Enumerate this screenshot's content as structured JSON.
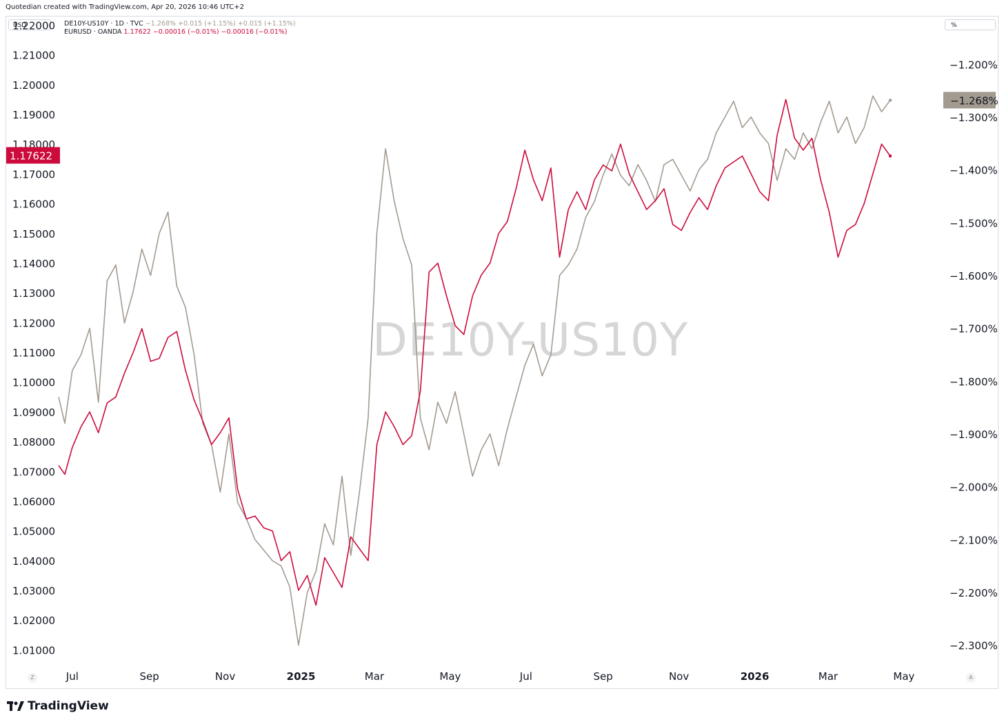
{
  "header": {
    "text": "Quotedian created with TradingView.com, Apr 20, 2026 10:46 UTC+2"
  },
  "toolbar": {
    "left_scale": "USD",
    "right_scale": "%"
  },
  "legend": {
    "series1_name": "DE10Y-US10Y · 1D · TVC",
    "series1_values": "−1.268%  +0.015 (+1.15%)  +0.015 (+1.15%)",
    "series2_name": "EURUSD · OANDA",
    "series2_values": "1.17622  −0.00016 (−0.01%)  −0.00016 (−0.01%)"
  },
  "watermark": "DE10Y-US10Y",
  "footer": {
    "brand": "TradingView"
  },
  "corner_buttons": {
    "left": "Z",
    "right": "A"
  },
  "colors": {
    "spread": "#a39a90",
    "eurusd": "#cc0a3b",
    "spread_label_bg": "#a39a90",
    "eurusd_label_bg": "#cc0a3b"
  },
  "chart_data": {
    "type": "line",
    "x_ticks": [
      {
        "label": "Jul",
        "date": "2024-07-01"
      },
      {
        "label": "Sep",
        "date": "2024-09-01"
      },
      {
        "label": "Nov",
        "date": "2024-11-01"
      },
      {
        "label": "2025",
        "date": "2025-01-01",
        "bold": true
      },
      {
        "label": "Mar",
        "date": "2025-03-01"
      },
      {
        "label": "May",
        "date": "2025-05-01"
      },
      {
        "label": "Jul",
        "date": "2025-07-01"
      },
      {
        "label": "Sep",
        "date": "2025-09-01"
      },
      {
        "label": "Nov",
        "date": "2025-11-01"
      },
      {
        "label": "2026",
        "date": "2026-01-01",
        "bold": true
      },
      {
        "label": "Mar",
        "date": "2026-03-01"
      },
      {
        "label": "May",
        "date": "2026-05-01"
      }
    ],
    "x_range": [
      "2024-06-20",
      "2026-05-31"
    ],
    "left_axis": {
      "range": [
        1.005,
        1.2215
      ],
      "ticks": [
        "1.01000",
        "1.02000",
        "1.03000",
        "1.04000",
        "1.05000",
        "1.06000",
        "1.07000",
        "1.08000",
        "1.09000",
        "1.10000",
        "1.11000",
        "1.12000",
        "1.13000",
        "1.14000",
        "1.15000",
        "1.16000",
        "1.17000",
        "1.18000",
        "1.19000",
        "1.20000",
        "1.21000",
        "1.22000"
      ],
      "last_value_label": "1.17622",
      "last_value": 1.17622
    },
    "right_axis": {
      "range": [
        -2.337,
        -1.1175
      ],
      "ticks": [
        "−1.200%",
        "−1.300%",
        "−1.400%",
        "−1.500%",
        "−1.600%",
        "−1.700%",
        "−1.800%",
        "−1.900%",
        "−2.000%",
        "−2.100%",
        "−2.200%",
        "−2.300%"
      ],
      "tick_values": [
        -1.2,
        -1.3,
        -1.4,
        -1.5,
        -1.6,
        -1.7,
        -1.8,
        -1.9,
        -2.0,
        -2.1,
        -2.2,
        -2.3
      ],
      "last_value_label": "−1.268%",
      "last_value": -1.268
    },
    "series": [
      {
        "name": "DE10Y-US10Y",
        "axis": "right",
        "color": "#a39a90",
        "x": [
          "2024-06-20",
          "2024-06-25",
          "2024-07-01",
          "2024-07-08",
          "2024-07-15",
          "2024-07-22",
          "2024-07-29",
          "2024-08-05",
          "2024-08-12",
          "2024-08-19",
          "2024-08-26",
          "2024-09-02",
          "2024-09-09",
          "2024-09-16",
          "2024-09-23",
          "2024-09-30",
          "2024-10-07",
          "2024-10-14",
          "2024-10-21",
          "2024-10-28",
          "2024-11-04",
          "2024-11-11",
          "2024-11-18",
          "2024-11-25",
          "2024-12-02",
          "2024-12-09",
          "2024-12-16",
          "2024-12-23",
          "2024-12-30",
          "2025-01-06",
          "2025-01-13",
          "2025-01-20",
          "2025-01-27",
          "2025-02-03",
          "2025-02-10",
          "2025-02-17",
          "2025-02-24",
          "2025-03-03",
          "2025-03-10",
          "2025-03-17",
          "2025-03-24",
          "2025-03-31",
          "2025-04-07",
          "2025-04-14",
          "2025-04-21",
          "2025-04-28",
          "2025-05-05",
          "2025-05-12",
          "2025-05-19",
          "2025-05-26",
          "2025-06-02",
          "2025-06-09",
          "2025-06-16",
          "2025-06-23",
          "2025-06-30",
          "2025-07-07",
          "2025-07-14",
          "2025-07-21",
          "2025-07-28",
          "2025-08-04",
          "2025-08-11",
          "2025-08-18",
          "2025-08-25",
          "2025-09-01",
          "2025-09-08",
          "2025-09-15",
          "2025-09-22",
          "2025-09-29",
          "2025-10-06",
          "2025-10-13",
          "2025-10-20",
          "2025-10-27",
          "2025-11-03",
          "2025-11-10",
          "2025-11-17",
          "2025-11-24",
          "2025-12-01",
          "2025-12-08",
          "2025-12-15",
          "2025-12-22",
          "2025-12-29",
          "2026-01-05",
          "2026-01-12",
          "2026-01-19",
          "2026-01-26",
          "2026-02-02",
          "2026-02-09",
          "2026-02-16",
          "2026-02-23",
          "2026-03-02",
          "2026-03-09",
          "2026-03-16",
          "2026-03-23",
          "2026-03-30",
          "2026-04-06",
          "2026-04-13",
          "2026-04-20"
        ],
        "values": [
          -1.83,
          -1.88,
          -1.78,
          -1.75,
          -1.7,
          -1.84,
          -1.61,
          -1.58,
          -1.69,
          -1.63,
          -1.55,
          -1.6,
          -1.52,
          -1.48,
          -1.62,
          -1.66,
          -1.75,
          -1.88,
          -1.92,
          -2.01,
          -1.9,
          -2.03,
          -2.06,
          -2.1,
          -2.12,
          -2.14,
          -2.15,
          -2.19,
          -2.3,
          -2.2,
          -2.16,
          -2.07,
          -2.11,
          -1.98,
          -2.13,
          -2.01,
          -1.87,
          -1.52,
          -1.36,
          -1.46,
          -1.53,
          -1.58,
          -1.87,
          -1.93,
          -1.84,
          -1.88,
          -1.82,
          -1.9,
          -1.98,
          -1.93,
          -1.9,
          -1.96,
          -1.89,
          -1.83,
          -1.77,
          -1.73,
          -1.79,
          -1.75,
          -1.6,
          -1.58,
          -1.55,
          -1.49,
          -1.46,
          -1.41,
          -1.37,
          -1.41,
          -1.43,
          -1.39,
          -1.42,
          -1.46,
          -1.39,
          -1.38,
          -1.41,
          -1.44,
          -1.4,
          -1.38,
          -1.33,
          -1.3,
          -1.27,
          -1.32,
          -1.3,
          -1.33,
          -1.35,
          -1.42,
          -1.36,
          -1.38,
          -1.33,
          -1.36,
          -1.31,
          -1.27,
          -1.33,
          -1.3,
          -1.35,
          -1.32,
          -1.26,
          -1.29,
          -1.268
        ]
      },
      {
        "name": "EURUSD",
        "axis": "left",
        "color": "#cc0a3b",
        "x": [
          "2024-06-20",
          "2024-06-25",
          "2024-07-01",
          "2024-07-08",
          "2024-07-15",
          "2024-07-22",
          "2024-07-29",
          "2024-08-05",
          "2024-08-12",
          "2024-08-19",
          "2024-08-26",
          "2024-09-02",
          "2024-09-09",
          "2024-09-16",
          "2024-09-23",
          "2024-09-30",
          "2024-10-07",
          "2024-10-14",
          "2024-10-21",
          "2024-10-28",
          "2024-11-04",
          "2024-11-11",
          "2024-11-18",
          "2024-11-25",
          "2024-12-02",
          "2024-12-09",
          "2024-12-16",
          "2024-12-23",
          "2024-12-30",
          "2025-01-06",
          "2025-01-13",
          "2025-01-20",
          "2025-01-27",
          "2025-02-03",
          "2025-02-10",
          "2025-02-17",
          "2025-02-24",
          "2025-03-03",
          "2025-03-10",
          "2025-03-17",
          "2025-03-24",
          "2025-03-31",
          "2025-04-07",
          "2025-04-14",
          "2025-04-21",
          "2025-04-28",
          "2025-05-05",
          "2025-05-12",
          "2025-05-19",
          "2025-05-26",
          "2025-06-02",
          "2025-06-09",
          "2025-06-16",
          "2025-06-23",
          "2025-06-30",
          "2025-07-07",
          "2025-07-14",
          "2025-07-21",
          "2025-07-28",
          "2025-08-04",
          "2025-08-11",
          "2025-08-18",
          "2025-08-25",
          "2025-09-01",
          "2025-09-08",
          "2025-09-15",
          "2025-09-22",
          "2025-09-29",
          "2025-10-06",
          "2025-10-13",
          "2025-10-20",
          "2025-10-27",
          "2025-11-03",
          "2025-11-10",
          "2025-11-17",
          "2025-11-24",
          "2025-12-01",
          "2025-12-08",
          "2025-12-15",
          "2025-12-22",
          "2025-12-29",
          "2026-01-05",
          "2026-01-12",
          "2026-01-19",
          "2026-01-26",
          "2026-02-02",
          "2026-02-09",
          "2026-02-16",
          "2026-02-23",
          "2026-03-02",
          "2026-03-09",
          "2026-03-16",
          "2026-03-23",
          "2026-03-30",
          "2026-04-06",
          "2026-04-13",
          "2026-04-20"
        ],
        "values": [
          1.072,
          1.069,
          1.078,
          1.085,
          1.09,
          1.083,
          1.093,
          1.095,
          1.103,
          1.11,
          1.118,
          1.107,
          1.108,
          1.115,
          1.117,
          1.104,
          1.094,
          1.087,
          1.079,
          1.083,
          1.088,
          1.064,
          1.054,
          1.055,
          1.051,
          1.05,
          1.04,
          1.043,
          1.03,
          1.035,
          1.025,
          1.041,
          1.036,
          1.031,
          1.048,
          1.044,
          1.04,
          1.079,
          1.09,
          1.085,
          1.079,
          1.082,
          1.097,
          1.137,
          1.14,
          1.129,
          1.119,
          1.116,
          1.129,
          1.136,
          1.14,
          1.15,
          1.154,
          1.165,
          1.178,
          1.168,
          1.161,
          1.172,
          1.142,
          1.158,
          1.164,
          1.158,
          1.168,
          1.173,
          1.171,
          1.18,
          1.17,
          1.164,
          1.158,
          1.161,
          1.165,
          1.153,
          1.151,
          1.157,
          1.162,
          1.158,
          1.166,
          1.172,
          1.174,
          1.176,
          1.17,
          1.164,
          1.161,
          1.183,
          1.195,
          1.182,
          1.178,
          1.182,
          1.168,
          1.157,
          1.142,
          1.151,
          1.153,
          1.16,
          1.17,
          1.18,
          1.176
        ]
      }
    ]
  }
}
